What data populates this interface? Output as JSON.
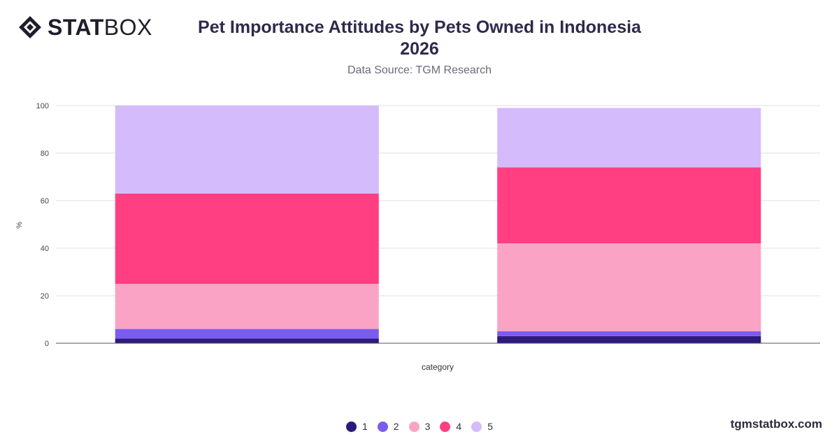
{
  "brand": {
    "bold": "STAT",
    "light": "BOX"
  },
  "header": {
    "title_line1": "Pet Importance Attitudes by Pets Owned in Indonesia",
    "title_line2": "2026",
    "source": "Data Source: TGM Research"
  },
  "footer": {
    "site": "tgmstatbox.com"
  },
  "colors": {
    "1": "#2d1a7a",
    "2": "#7b5cf0",
    "3": "#fba3c4",
    "4": "#ff3f82",
    "5": "#d4bbfc"
  },
  "chart_data": {
    "type": "bar",
    "stacked": true,
    "categories": [
      "",
      ""
    ],
    "xlabel": "category",
    "ylabel": "%",
    "ylim": [
      0,
      100
    ],
    "yticks": [
      0,
      20,
      40,
      60,
      80,
      100
    ],
    "grid": true,
    "legend_position": "bottom",
    "series": [
      {
        "name": "1",
        "values": [
          2,
          3
        ]
      },
      {
        "name": "2",
        "values": [
          4,
          2
        ]
      },
      {
        "name": "3",
        "values": [
          19,
          37
        ]
      },
      {
        "name": "4",
        "values": [
          38,
          32
        ]
      },
      {
        "name": "5",
        "values": [
          37,
          25
        ]
      }
    ]
  }
}
